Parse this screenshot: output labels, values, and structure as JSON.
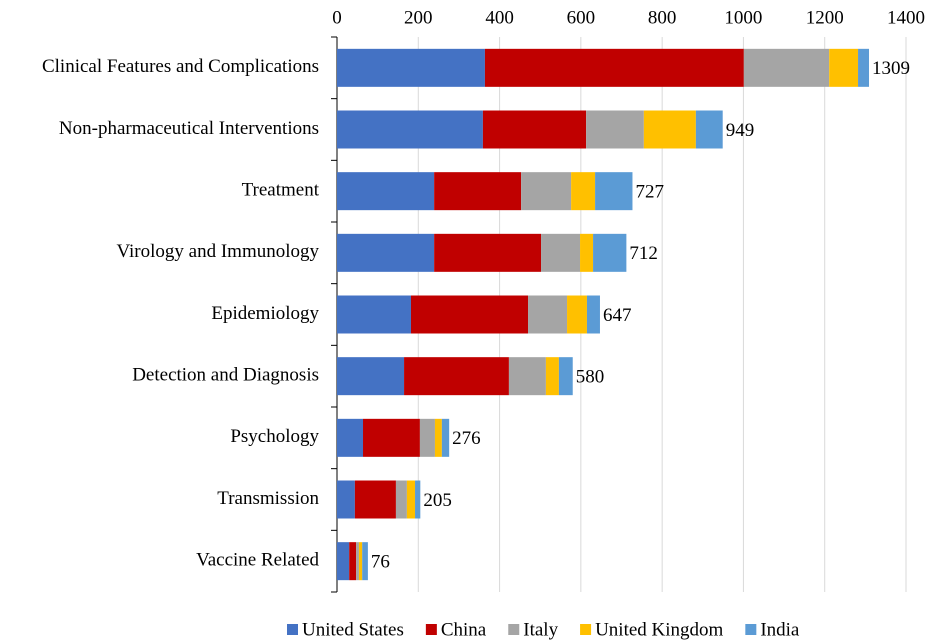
{
  "chart_data": {
    "type": "stacked_barh",
    "categories": [
      "Clinical Features and Complications",
      "Non-pharmaceutical Interventions",
      "Treatment",
      "Virology and Immunology",
      "Epidemiology",
      "Detection and Diagnosis",
      "Psychology",
      "Transmission",
      "Vaccine Related"
    ],
    "series": [
      {
        "name": "United States",
        "color": "#4472c4",
        "values": [
          364,
          359,
          239,
          239,
          182,
          165,
          64,
          44,
          30
        ]
      },
      {
        "name": "China",
        "color": "#c00000",
        "values": [
          637,
          254,
          214,
          263,
          288,
          258,
          140,
          101,
          17
        ]
      },
      {
        "name": "Italy",
        "color": "#a5a5a5",
        "values": [
          210,
          142,
          123,
          96,
          96,
          91,
          37,
          27,
          7
        ]
      },
      {
        "name": "United Kingdom",
        "color": "#ffc000",
        "values": [
          71,
          128,
          59,
          32,
          49,
          32,
          17,
          20,
          8
        ]
      },
      {
        "name": "India",
        "color": "#5b9bd5",
        "values": [
          27,
          66,
          92,
          82,
          32,
          34,
          18,
          13,
          14
        ]
      }
    ],
    "totals": [
      1309,
      949,
      727,
      712,
      647,
      580,
      276,
      205,
      76
    ],
    "xlim": [
      0,
      1400
    ],
    "xticks": [
      0,
      200,
      400,
      600,
      800,
      1000,
      1200,
      1400
    ],
    "grid": true,
    "legend": "bottom"
  }
}
